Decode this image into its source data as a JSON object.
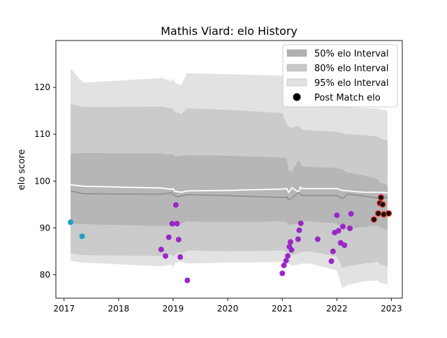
{
  "chart_data": {
    "type": "scatter",
    "title": "Mathis Viard: elo History",
    "xlabel": "",
    "ylabel": "elo score",
    "xlim": [
      2016.85,
      2023.2
    ],
    "ylim": [
      75,
      130
    ],
    "x_ticks": [
      2017,
      2018,
      2019,
      2020,
      2021,
      2022,
      2023
    ],
    "y_ticks": [
      80,
      90,
      100,
      110,
      120
    ],
    "legend_position": "top-right",
    "legend": [
      {
        "label": "50% elo Interval",
        "color": "#b0b0b0"
      },
      {
        "label": "80% elo Interval",
        "color": "#c8c8c8"
      },
      {
        "label": "95% elo Interval",
        "color": "#e2e2e2"
      },
      {
        "label": "Post Match elo",
        "color": "#000000"
      }
    ],
    "colors": {
      "band95": "#e2e2e2",
      "band80": "#cbcbcb",
      "band50": "#b6b6b6",
      "mean_line": "#ffffff",
      "median_line": "#8c8c8c",
      "early_points": "#1f9fc8",
      "mid_points": "#9a27c8",
      "recent_points": "#e8372a"
    },
    "series": [
      {
        "name": "95% elo Interval",
        "type": "band",
        "x": [
          2017.12,
          2017.35,
          2018.8,
          2018.97,
          2019.0,
          2019.03,
          2019.1,
          2019.15,
          2019.25,
          2020.0,
          2021.0,
          2021.08,
          2021.12,
          2021.18,
          2021.3,
          2021.36,
          2021.5,
          2022.0,
          2022.1,
          2022.2,
          2022.5,
          2022.75,
          2022.8,
          2022.88,
          2022.93
        ],
        "upper": [
          124.0,
          121.0,
          122.0,
          121.3,
          122.0,
          121.0,
          120.6,
          120.5,
          123.0,
          122.8,
          122.5,
          118.5,
          118.0,
          117.8,
          118.4,
          117.0,
          116.5,
          116.3,
          116.0,
          115.8,
          115.6,
          115.5,
          115.3,
          115.2,
          115.0
        ],
        "lower": [
          83.0,
          82.6,
          81.8,
          82.2,
          81.4,
          82.5,
          82.8,
          82.8,
          82.4,
          82.6,
          82.7,
          82.5,
          82.3,
          82.0,
          82.2,
          82.4,
          82.4,
          80.9,
          77.2,
          77.8,
          78.6,
          78.8,
          78.2,
          78.1,
          77.8
        ]
      },
      {
        "name": "80% elo Interval",
        "type": "band",
        "x": [
          2017.12,
          2017.35,
          2018.8,
          2018.97,
          2019.0,
          2019.03,
          2019.1,
          2019.15,
          2019.25,
          2020.0,
          2021.0,
          2021.08,
          2021.12,
          2021.18,
          2021.3,
          2021.36,
          2021.5,
          2022.0,
          2022.1,
          2022.2,
          2022.5,
          2022.75,
          2022.8,
          2022.88,
          2022.93
        ],
        "upper": [
          116.5,
          115.8,
          115.9,
          115.5,
          115.5,
          114.6,
          114.6,
          114.2,
          115.5,
          115.2,
          114.5,
          112.2,
          111.6,
          111.4,
          111.8,
          111.0,
          110.8,
          110.5,
          110.2,
          110.0,
          109.8,
          109.5,
          109.0,
          108.8,
          108.5
        ],
        "lower": [
          84.6,
          84.2,
          84.0,
          84.3,
          83.9,
          84.2,
          84.8,
          84.6,
          85.2,
          85.0,
          85.2,
          84.8,
          84.4,
          84.2,
          84.6,
          84.9,
          85.0,
          83.9,
          81.5,
          81.8,
          82.4,
          82.8,
          82.2,
          82.0,
          81.6
        ]
      },
      {
        "name": "50% elo Interval",
        "type": "band",
        "x": [
          2017.12,
          2017.35,
          2018.8,
          2018.97,
          2019.0,
          2019.03,
          2019.1,
          2019.15,
          2019.25,
          2020.0,
          2021.0,
          2021.08,
          2021.12,
          2021.18,
          2021.3,
          2021.36,
          2021.5,
          2022.0,
          2022.1,
          2022.2,
          2022.5,
          2022.75,
          2022.8,
          2022.88,
          2022.93
        ],
        "upper": [
          105.8,
          106.0,
          105.9,
          105.6,
          105.8,
          105.3,
          105.3,
          105.4,
          105.5,
          105.4,
          105.0,
          104.9,
          102.2,
          102.0,
          104.5,
          103.2,
          103.0,
          102.8,
          102.5,
          101.8,
          101.2,
          100.4,
          99.6,
          99.4,
          99.0
        ],
        "lower": [
          91.0,
          90.8,
          90.4,
          90.6,
          90.2,
          90.4,
          90.8,
          90.9,
          91.4,
          91.2,
          91.4,
          91.2,
          90.6,
          90.8,
          90.9,
          91.4,
          91.4,
          91.0,
          89.6,
          89.8,
          90.2,
          90.5,
          90.0,
          89.8,
          89.5
        ]
      },
      {
        "name": "mean",
        "type": "line",
        "color": "#ffffff",
        "x": [
          2017.12,
          2017.35,
          2018.8,
          2018.97,
          2019.0,
          2019.03,
          2019.1,
          2019.15,
          2019.25,
          2020.0,
          2021.0,
          2021.08,
          2021.12,
          2021.18,
          2021.3,
          2021.33,
          2021.36,
          2021.5,
          2022.0,
          2022.1,
          2022.2,
          2022.5,
          2022.75,
          2022.8,
          2022.93
        ],
        "values": [
          99.2,
          98.9,
          98.5,
          98.2,
          98.4,
          97.8,
          97.7,
          97.6,
          97.9,
          98.0,
          98.3,
          98.4,
          97.6,
          98.6,
          97.6,
          98.7,
          98.4,
          98.4,
          98.4,
          98.0,
          97.9,
          97.6,
          97.6,
          97.6,
          97.5
        ]
      },
      {
        "name": "median",
        "type": "line",
        "color": "#8c8c8c",
        "x": [
          2017.12,
          2017.35,
          2018.8,
          2018.97,
          2019.0,
          2019.03,
          2019.1,
          2019.15,
          2019.25,
          2020.0,
          2021.0,
          2021.08,
          2021.12,
          2021.18,
          2021.3,
          2021.36,
          2021.5,
          2022.0,
          2022.1,
          2022.2,
          2022.5,
          2022.75,
          2022.8,
          2022.93
        ],
        "values": [
          97.9,
          97.3,
          97.2,
          97.5,
          97.3,
          96.9,
          96.6,
          96.9,
          97.1,
          96.9,
          96.5,
          96.6,
          96.0,
          96.4,
          97.6,
          96.9,
          96.9,
          96.9,
          96.3,
          97.2,
          96.8,
          96.4,
          96.5,
          96.5
        ]
      },
      {
        "name": "Post Match elo",
        "type": "scatter",
        "points": [
          {
            "x": 2017.12,
            "y": 91.2,
            "c": "early_points"
          },
          {
            "x": 2017.33,
            "y": 88.2,
            "c": "early_points"
          },
          {
            "x": 2018.78,
            "y": 85.4,
            "c": "mid_points"
          },
          {
            "x": 2018.86,
            "y": 84.0,
            "c": "mid_points"
          },
          {
            "x": 2018.92,
            "y": 88.0,
            "c": "mid_points"
          },
          {
            "x": 2018.98,
            "y": 90.9,
            "c": "mid_points"
          },
          {
            "x": 2019.05,
            "y": 94.9,
            "c": "mid_points"
          },
          {
            "x": 2019.07,
            "y": 90.9,
            "c": "mid_points"
          },
          {
            "x": 2019.1,
            "y": 87.5,
            "c": "mid_points"
          },
          {
            "x": 2019.13,
            "y": 83.8,
            "c": "mid_points"
          },
          {
            "x": 2019.26,
            "y": 78.8,
            "c": "mid_points"
          },
          {
            "x": 2021.0,
            "y": 80.3,
            "c": "mid_points"
          },
          {
            "x": 2021.03,
            "y": 82.0,
            "c": "mid_points"
          },
          {
            "x": 2021.07,
            "y": 83.0,
            "c": "mid_points"
          },
          {
            "x": 2021.1,
            "y": 84.0,
            "c": "mid_points"
          },
          {
            "x": 2021.13,
            "y": 86.0,
            "c": "mid_points"
          },
          {
            "x": 2021.15,
            "y": 87.0,
            "c": "mid_points"
          },
          {
            "x": 2021.17,
            "y": 85.3,
            "c": "mid_points"
          },
          {
            "x": 2021.29,
            "y": 87.6,
            "c": "mid_points"
          },
          {
            "x": 2021.31,
            "y": 89.5,
            "c": "mid_points"
          },
          {
            "x": 2021.34,
            "y": 91.0,
            "c": "mid_points"
          },
          {
            "x": 2021.65,
            "y": 87.6,
            "c": "mid_points"
          },
          {
            "x": 2021.9,
            "y": 82.9,
            "c": "mid_points"
          },
          {
            "x": 2021.93,
            "y": 85.0,
            "c": "mid_points"
          },
          {
            "x": 2021.96,
            "y": 89.0,
            "c": "mid_points"
          },
          {
            "x": 2022.0,
            "y": 92.7,
            "c": "mid_points"
          },
          {
            "x": 2022.03,
            "y": 89.4,
            "c": "mid_points"
          },
          {
            "x": 2022.07,
            "y": 86.8,
            "c": "mid_points"
          },
          {
            "x": 2022.11,
            "y": 90.3,
            "c": "mid_points"
          },
          {
            "x": 2022.14,
            "y": 86.3,
            "c": "mid_points"
          },
          {
            "x": 2022.24,
            "y": 89.9,
            "c": "mid_points"
          },
          {
            "x": 2022.26,
            "y": 93.0,
            "c": "mid_points"
          },
          {
            "x": 2022.68,
            "y": 91.8,
            "c": "recent_points"
          },
          {
            "x": 2022.76,
            "y": 93.1,
            "c": "recent_points"
          },
          {
            "x": 2022.79,
            "y": 95.3,
            "c": "recent_points"
          },
          {
            "x": 2022.81,
            "y": 96.5,
            "c": "recent_points"
          },
          {
            "x": 2022.84,
            "y": 95.0,
            "c": "recent_points"
          },
          {
            "x": 2022.86,
            "y": 92.9,
            "c": "recent_points"
          },
          {
            "x": 2022.95,
            "y": 93.1,
            "c": "recent_points"
          }
        ]
      }
    ]
  }
}
